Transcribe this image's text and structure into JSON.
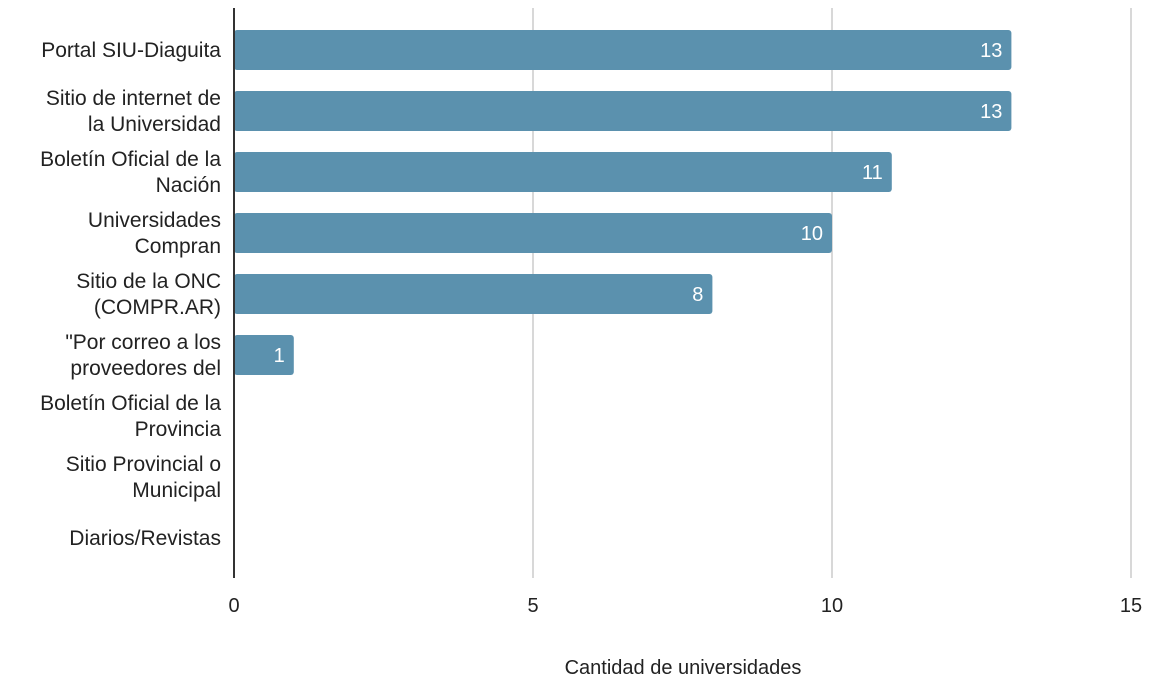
{
  "chart_data": {
    "type": "bar",
    "orientation": "horizontal",
    "title": "",
    "xlabel": "Cantidad de universidades",
    "ylabel": "",
    "categories": [
      [
        "Portal SIU-Diaguita"
      ],
      [
        "Sitio de internet de",
        "la Universidad"
      ],
      [
        "Boletín Oficial de la",
        "Nación"
      ],
      [
        "Universidades",
        "Compran"
      ],
      [
        "Sitio de la ONC",
        "(COMPR.AR)"
      ],
      [
        "\"Por correo a los",
        "proveedores del"
      ],
      [
        "Boletín Oficial de la",
        "Provincia"
      ],
      [
        "Sitio Provincial o",
        "Municipal"
      ],
      [
        "Diarios/Revistas"
      ]
    ],
    "values": [
      13,
      13,
      11,
      10,
      8,
      1,
      null,
      null,
      null
    ],
    "data_labels": [
      "13",
      "13",
      "11",
      "10",
      "8",
      "1",
      "",
      "",
      ""
    ],
    "xlim": [
      0,
      15
    ],
    "xticks": [
      0,
      5,
      10,
      15
    ],
    "grid": true,
    "legend": "none",
    "colors": {
      "bar": "#5b91ae",
      "grid": "#cccccc",
      "axis": "#333333",
      "text": "#222222",
      "data_label": "#ffffff"
    }
  }
}
